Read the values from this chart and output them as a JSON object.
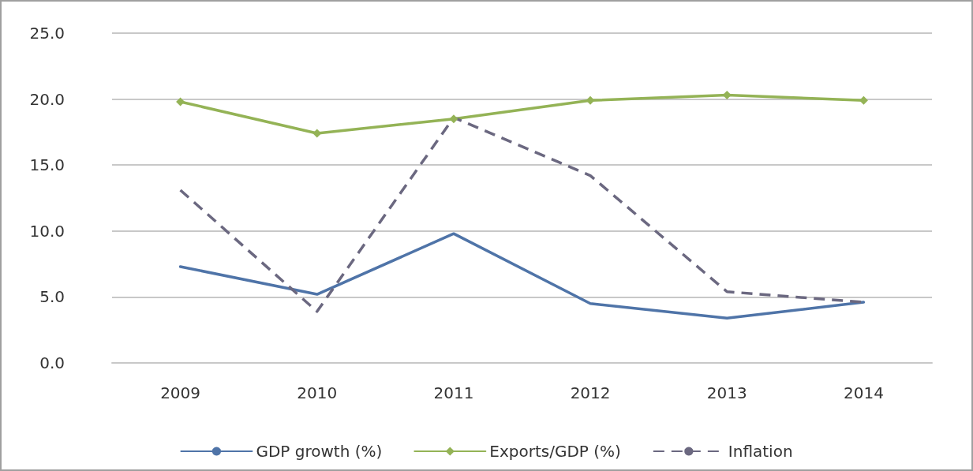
{
  "chart_data": {
    "type": "line",
    "categories": [
      "2009",
      "2010",
      "2011",
      "2012",
      "2013",
      "2014"
    ],
    "series": [
      {
        "name": "GDP growth (%)",
        "color": "#4f74a8",
        "values": [
          7.3,
          5.2,
          9.8,
          4.5,
          3.4,
          4.6
        ],
        "marker": "none",
        "line_style": "solid"
      },
      {
        "name": "Exports/GDP (%)",
        "color": "#94b356",
        "values": [
          19.8,
          17.4,
          18.5,
          19.9,
          20.3,
          19.9
        ],
        "marker": "diamond",
        "line_style": "solid"
      },
      {
        "name": "Inflation",
        "color": "#6b6880",
        "values": [
          13.1,
          3.9,
          18.6,
          14.2,
          5.4,
          4.6
        ],
        "marker": "none",
        "line_style": "dashed"
      }
    ],
    "ylim": [
      0,
      25
    ],
    "yticks": [
      {
        "value": 0,
        "label": "0.0"
      },
      {
        "value": 5,
        "label": "5.0"
      },
      {
        "value": 10,
        "label": "10.0"
      },
      {
        "value": 15,
        "label": "15.0"
      },
      {
        "value": 20,
        "label": "20.0"
      },
      {
        "value": 25,
        "label": "25.0"
      }
    ],
    "grid": "y",
    "legend": "bottom"
  }
}
